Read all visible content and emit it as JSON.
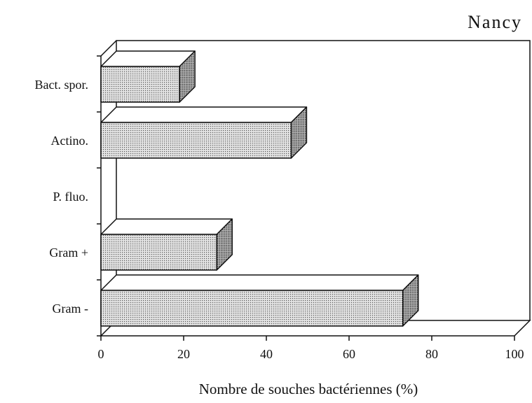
{
  "chart_data": {
    "type": "bar3d",
    "orientation": "horizontal",
    "title": "Nancy",
    "x_label": "Nombre de souches bactériennes (%)",
    "categories": [
      "Bact. spor.",
      "Actino.",
      "P. fluo.",
      "Gram +",
      "Gram -"
    ],
    "values": [
      19,
      46,
      0,
      28,
      73
    ],
    "xlim": [
      0,
      100
    ],
    "xticks": [
      0,
      20,
      40,
      60,
      80,
      100
    ]
  }
}
